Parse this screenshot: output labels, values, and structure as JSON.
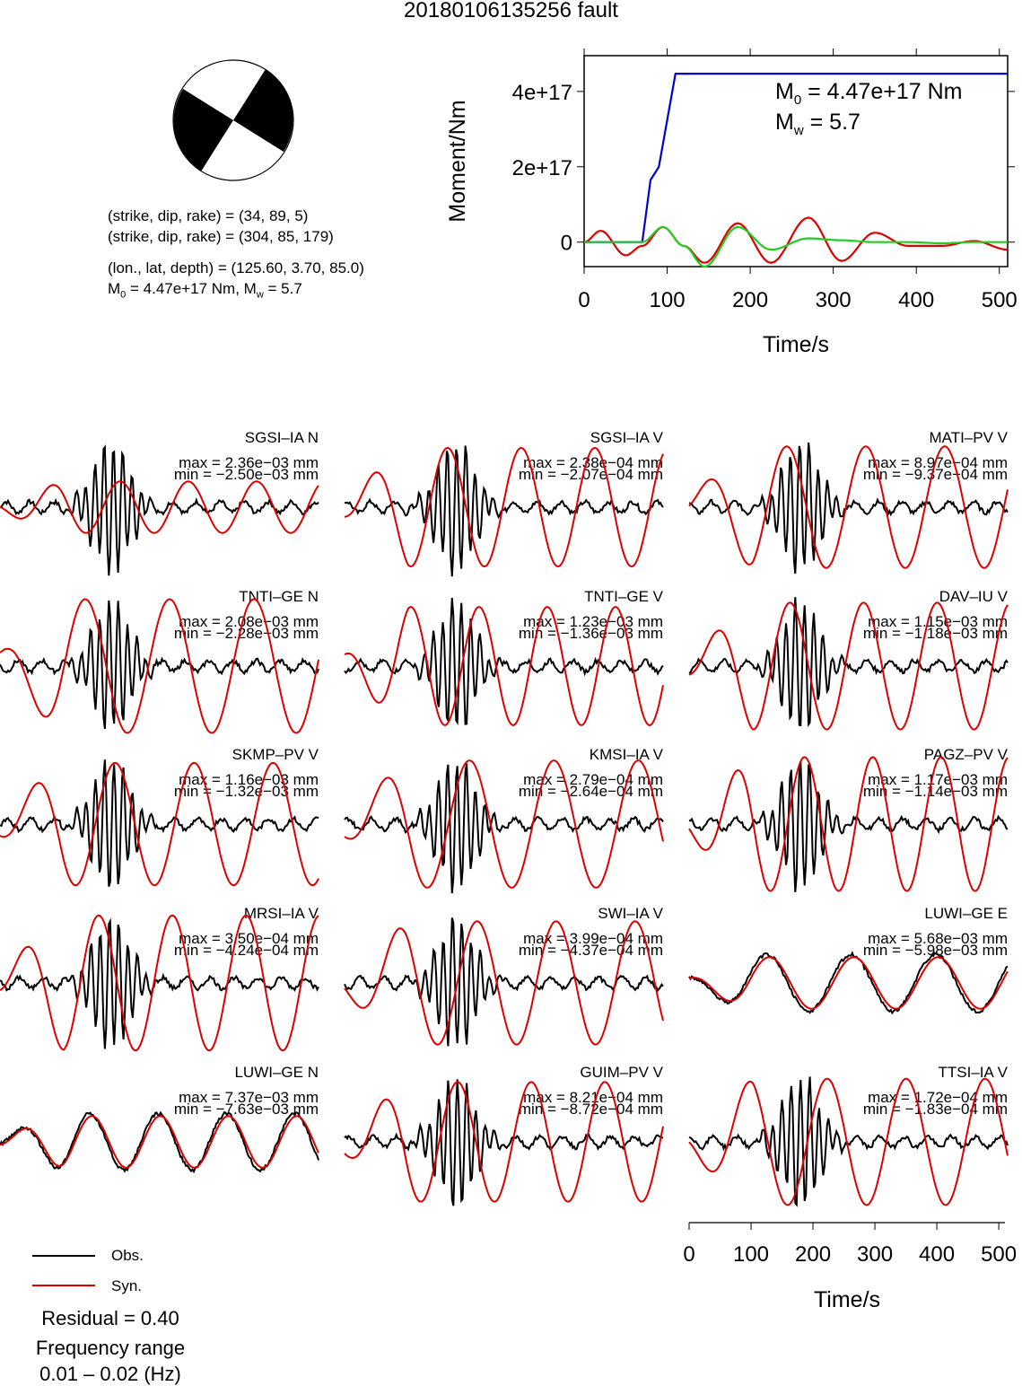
{
  "title": "20180106135256 fault",
  "mechanism": {
    "line1": "(strike, dip, rake) = (34, 89, 5)",
    "line2": "(strike, dip, rake) = (304, 85, 179)",
    "line3": "(lon., lat, depth) = (125.60, 3.70, 85.0)",
    "line4_m0": "M",
    "line4_sub0": "0",
    "line4_mid": " = 4.47e+17 Nm, M",
    "line4_subw": "w",
    "line4_end": " = 5.7",
    "colors": {
      "fill": "#000000",
      "background": "#ffffff"
    }
  },
  "moment_panel": {
    "annot_m0_pre": "M",
    "annot_m0_sub": "0",
    "annot_m0_post": " = 4.47e+17 Nm",
    "annot_mw_pre": "M",
    "annot_mw_sub": "w",
    "annot_mw_post": " = 5.7"
  },
  "legend": {
    "obs": "Obs.",
    "syn": "Syn.",
    "obs_color": "#000000",
    "syn_color": "#dd0000"
  },
  "footer": {
    "residual": "Residual = 0.40",
    "freq_label": "Frequency range",
    "freq_value": "0.01 – 0.02 (Hz)"
  },
  "chart_data": [
    {
      "type": "line",
      "title": "",
      "xlabel": "Time/s",
      "ylabel": "Moment/Nm",
      "xlim": [
        0,
        510
      ],
      "ylim": [
        -6.5e+16,
        4.95e+17
      ],
      "xticks": [
        0,
        100,
        200,
        300,
        400,
        500
      ],
      "yticks": [
        0,
        2e+17,
        4e+17
      ],
      "ytick_labels": [
        "0",
        "2e+17",
        "4e+17"
      ],
      "series": [
        {
          "name": "",
          "color": "#0000cc",
          "x": [
            0,
            70,
            80,
            90,
            110,
            510
          ],
          "y": [
            0,
            0,
            1.65e+17,
            2e+17,
            4.47e+17,
            4.47e+17
          ]
        },
        {
          "name": "",
          "color": "#dd0000",
          "x": [
            0,
            20,
            50,
            70,
            95,
            120,
            145,
            185,
            225,
            270,
            310,
            350,
            390,
            430,
            470,
            510
          ],
          "y": [
            0,
            3e+16,
            -3.5e+16,
            -1e+16,
            4e+16,
            -1e+16,
            -5.5e+16,
            5e+16,
            -5.5e+16,
            6.5e+16,
            -5e+16,
            2.5e+16,
            -1e+16,
            -1e+16,
            3000000000000000.0,
            -2e+16
          ]
        },
        {
          "name": "",
          "color": "#22cc22",
          "x": [
            0,
            70,
            95,
            120,
            145,
            185,
            225,
            270,
            310,
            350,
            390,
            430,
            470,
            510
          ],
          "y": [
            0,
            0,
            4e+16,
            -1e+16,
            -6.5e+16,
            4e+16,
            -2e+16,
            1e+16,
            5000000000000000.0,
            0,
            0,
            -3000000000000000.0,
            0,
            0
          ]
        }
      ]
    },
    {
      "type": "line",
      "title": "",
      "xlabel": "Time/s",
      "ylabel": "",
      "xlim": [
        0,
        510
      ],
      "xticks": [
        0,
        100,
        200,
        300,
        400,
        500
      ],
      "stations": [
        {
          "name": "SGSI–IA N",
          "max": "max = 2.36e−03 mm",
          "min": "min = −2.50e−03 mm"
        },
        {
          "name": "SGSI–IA V",
          "max": "max = 2.38e−04 mm",
          "min": "min = −2.07e−04 mm"
        },
        {
          "name": "MATI–PV V",
          "max": "max = 8.97e−04 mm",
          "min": "min = −9.37e−04 mm"
        },
        {
          "name": "TNTI–GE N",
          "max": "max = 2.08e−03 mm",
          "min": "min = −2.28e−03 mm"
        },
        {
          "name": "TNTI–GE V",
          "max": "max = 1.23e−03 mm",
          "min": "min = −1.36e−03 mm"
        },
        {
          "name": "DAV–IU V",
          "max": "max = 1.15e−03 mm",
          "min": "min = −1.18e−03 mm"
        },
        {
          "name": "SKMP–PV V",
          "max": "max = 1.16e−03 mm",
          "min": "min = −1.32e−03 mm"
        },
        {
          "name": "KMSI–IA V",
          "max": "max = 2.79e−04 mm",
          "min": "min = −2.64e−04 mm"
        },
        {
          "name": "PAGZ–PV V",
          "max": "max = 1.17e−03 mm",
          "min": "min = −1.14e−03 mm"
        },
        {
          "name": "MRSI–IA V",
          "max": "max = 3.50e−04 mm",
          "min": "min = −4.24e−04 mm"
        },
        {
          "name": "SWI–IA V",
          "max": "max = 3.99e−04 mm",
          "min": "min = −4.37e−04 mm"
        },
        {
          "name": "LUWI–GE E",
          "max": "max = 5.68e−03 mm",
          "min": "min = −5.98e−03 mm"
        },
        {
          "name": "LUWI–GE N",
          "max": "max = 7.37e−03 mm",
          "min": "min = −7.63e−03 mm"
        },
        {
          "name": "GUIM–PV V",
          "max": "max = 8.21e−04 mm",
          "min": "min = −8.72e−04 mm"
        },
        {
          "name": "TTSI–IA V",
          "max": "max = 1.72e−04 mm",
          "min": "min = −1.83e−04 mm"
        }
      ]
    }
  ]
}
